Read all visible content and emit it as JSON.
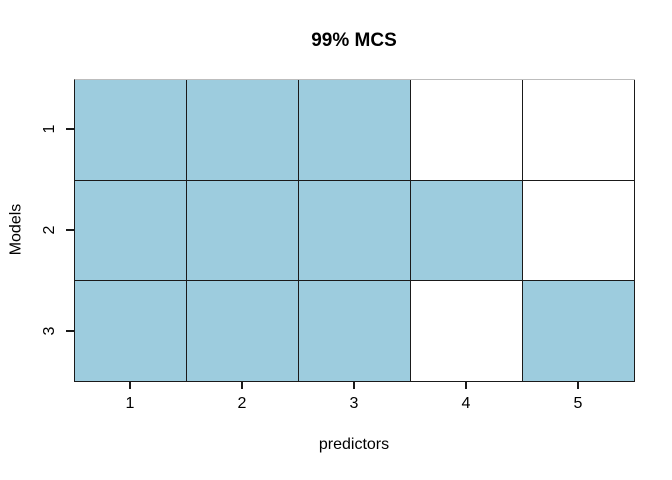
{
  "chart_data": {
    "type": "heatmap",
    "title": "99% MCS",
    "xlabel": "predictors",
    "ylabel": "Models",
    "x_tick_labels": [
      "1",
      "2",
      "3",
      "4",
      "5"
    ],
    "y_tick_labels": [
      "1",
      "2",
      "3"
    ],
    "rows": [
      {
        "model": "1",
        "included_predictors": [
          1,
          1,
          1,
          0,
          0
        ]
      },
      {
        "model": "2",
        "included_predictors": [
          1,
          1,
          1,
          1,
          0
        ]
      },
      {
        "model": "3",
        "included_predictors": [
          1,
          1,
          1,
          0,
          1
        ]
      }
    ],
    "matrix_row_order": "top-to-bottom",
    "colors": {
      "included_cell": "#9dccde",
      "excluded_cell": "#ffffff",
      "grid_line": "#1a1a1a",
      "top_box_line": "#bdbdbd",
      "text": "#000000",
      "background": "#ffffff"
    },
    "x_range": [
      0.5,
      5.5
    ],
    "y_range": [
      0.5,
      3.5
    ],
    "legend": "none",
    "grid": "on"
  }
}
